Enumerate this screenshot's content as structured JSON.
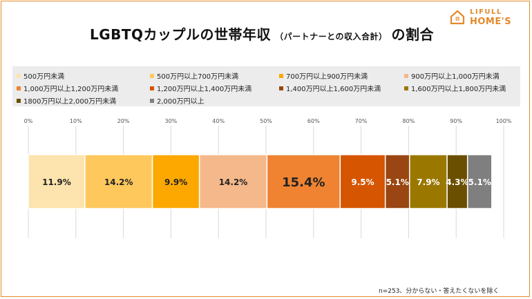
{
  "header": {
    "title_main": "LGBTQカップルの世帯年収",
    "title_sub": "（パートナーとの収入合計）",
    "title_end": "の割合"
  },
  "logo": {
    "line1": "LIFULL",
    "line2": "HOME'S",
    "color": "#e48a2a"
  },
  "footnote": "n=253、分からない・答えたくないを除く",
  "chart_data": {
    "type": "bar",
    "orientation": "horizontal-stacked-100",
    "x_ticks": [
      "0%",
      "10%",
      "20%",
      "30%",
      "40%",
      "50%",
      "60%",
      "70%",
      "80%",
      "90%",
      "100%"
    ],
    "xlim": [
      0,
      100
    ],
    "grid": true,
    "legend_position": "top",
    "series": [
      {
        "name": "500万円未満",
        "value": 11.9,
        "label": "11.9%",
        "color": "#fde3ad"
      },
      {
        "name": "500万円以上700万円未満",
        "value": 14.2,
        "label": "14.2%",
        "color": "#fec85c"
      },
      {
        "name": "700万円以上900万円未満",
        "value": 9.9,
        "label": "9.9%",
        "color": "#fca800"
      },
      {
        "name": "900万円以上1,000万円未満",
        "value": 14.2,
        "label": "14.2%",
        "color": "#f5b88b"
      },
      {
        "name": "1,000万円以上1,200万円未満",
        "value": 15.4,
        "label": "15.4%",
        "color": "#ef8332"
      },
      {
        "name": "1,200万円以上1,400万円未満",
        "value": 9.5,
        "label": "9.5%",
        "color": "#d55500"
      },
      {
        "name": "1,400万円以上1,600万円未満",
        "value": 5.1,
        "label": "5.1%",
        "color": "#9a4612"
      },
      {
        "name": "1,600万円以上1,800万円未満",
        "value": 7.9,
        "label": "7.9%",
        "color": "#9a7800"
      },
      {
        "name": "1800万円以上2,000万円未満",
        "value": 4.3,
        "label": "4.3%",
        "color": "#6b4f00"
      },
      {
        "name": "2,000万円以上",
        "value": 5.1,
        "label": "5.1%",
        "color": "#7f7f7f"
      }
    ]
  }
}
